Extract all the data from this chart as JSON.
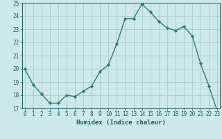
{
  "x": [
    0,
    1,
    2,
    3,
    4,
    5,
    6,
    7,
    8,
    9,
    10,
    11,
    12,
    13,
    14,
    15,
    16,
    17,
    18,
    19,
    20,
    21,
    22,
    23
  ],
  "y": [
    20.0,
    18.8,
    18.1,
    17.4,
    17.4,
    18.0,
    17.9,
    18.3,
    18.7,
    19.8,
    20.3,
    21.9,
    23.8,
    23.8,
    24.9,
    24.3,
    23.6,
    23.1,
    22.9,
    23.2,
    22.5,
    20.4,
    18.7,
    16.8
  ],
  "xlabel": "Humidex (Indice chaleur)",
  "bg_color": "#cce8e8",
  "grid_color": "#aad0d0",
  "line_color": "#2d7d78",
  "marker_color": "#2d7d78",
  "tick_color": "#1a5f5a",
  "label_color": "#1a5f5a",
  "ylim": [
    17,
    25
  ],
  "yticks": [
    17,
    18,
    19,
    20,
    21,
    22,
    23,
    24,
    25
  ],
  "xticks": [
    0,
    1,
    2,
    3,
    4,
    5,
    6,
    7,
    8,
    9,
    10,
    11,
    12,
    13,
    14,
    15,
    16,
    17,
    18,
    19,
    20,
    21,
    22,
    23
  ]
}
